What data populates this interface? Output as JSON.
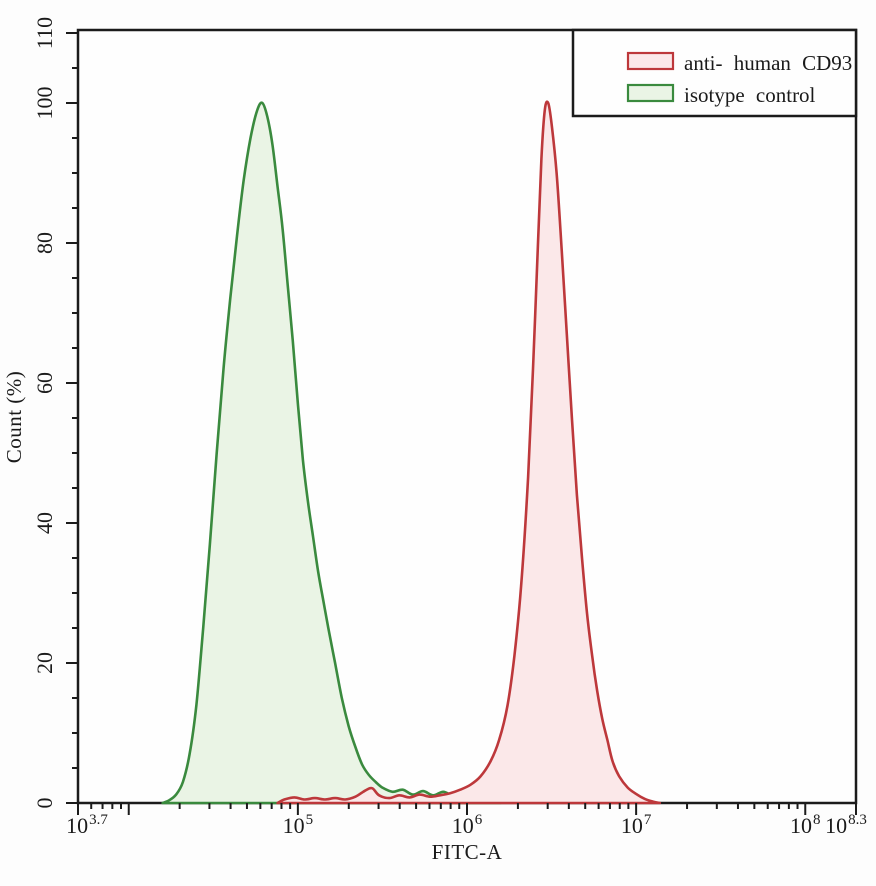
{
  "chart_data": {
    "type": "area",
    "subtype": "flow-cytometry-histogram-overlay",
    "title": "",
    "xlabel": "FITC-A",
    "ylabel": "Count (%)",
    "x_scale": "log10",
    "x_log_min": 3.7,
    "x_log_max": 8.3,
    "y_min": 0,
    "y_max": 110,
    "grid": false,
    "legend_position": "top-right",
    "x_tick_labels": [
      {
        "log": 3.7,
        "base": "10",
        "exp": "3.7"
      },
      {
        "log": 5,
        "base": "10",
        "exp": "5"
      },
      {
        "log": 6,
        "base": "10",
        "exp": "6"
      },
      {
        "log": 7,
        "base": "10",
        "exp": "7"
      },
      {
        "log": 8,
        "base": "10",
        "exp": "8"
      },
      {
        "log": 8.3,
        "base": "10",
        "exp": "8.3"
      }
    ],
    "x_major_unlabeled_logs": [
      4,
      5,
      6,
      7,
      8
    ],
    "y_major_ticks": [
      0,
      20,
      40,
      60,
      80,
      100,
      110
    ],
    "y_minor_step": 5,
    "series": [
      {
        "name": "anti- human CD93",
        "stroke": "#bd383b",
        "fill": "#fbe8e9",
        "peak_log10_x": 6.47,
        "peak_count": 100,
        "points": [
          [
            4.88,
            0
          ],
          [
            4.92,
            0.5
          ],
          [
            4.98,
            0.8
          ],
          [
            5.04,
            0.5
          ],
          [
            5.1,
            0.7
          ],
          [
            5.16,
            0.5
          ],
          [
            5.22,
            0.7
          ],
          [
            5.28,
            0.5
          ],
          [
            5.34,
            0.9
          ],
          [
            5.4,
            1.8
          ],
          [
            5.44,
            2.1
          ],
          [
            5.48,
            1.1
          ],
          [
            5.54,
            0.7
          ],
          [
            5.6,
            1.1
          ],
          [
            5.66,
            0.8
          ],
          [
            5.72,
            1.2
          ],
          [
            5.78,
            0.9
          ],
          [
            5.84,
            1.1
          ],
          [
            5.9,
            1.4
          ],
          [
            5.96,
            1.9
          ],
          [
            6.02,
            2.6
          ],
          [
            6.08,
            3.8
          ],
          [
            6.14,
            6
          ],
          [
            6.19,
            9
          ],
          [
            6.24,
            14
          ],
          [
            6.28,
            21
          ],
          [
            6.32,
            31
          ],
          [
            6.36,
            46
          ],
          [
            6.39,
            62
          ],
          [
            6.42,
            80
          ],
          [
            6.44,
            92
          ],
          [
            6.46,
            99
          ],
          [
            6.48,
            100
          ],
          [
            6.5,
            97
          ],
          [
            6.53,
            90
          ],
          [
            6.56,
            79
          ],
          [
            6.59,
            67
          ],
          [
            6.62,
            55
          ],
          [
            6.65,
            44
          ],
          [
            6.68,
            35
          ],
          [
            6.71,
            27
          ],
          [
            6.74,
            21
          ],
          [
            6.77,
            16
          ],
          [
            6.8,
            12
          ],
          [
            6.83,
            9
          ],
          [
            6.86,
            6
          ],
          [
            6.9,
            3.8
          ],
          [
            6.95,
            2.2
          ],
          [
            7.0,
            1.3
          ],
          [
            7.05,
            0.6
          ],
          [
            7.1,
            0.2
          ],
          [
            7.14,
            0
          ]
        ]
      },
      {
        "name": "isotype control",
        "stroke": "#3a8a3e",
        "fill": "#eaf4e5",
        "peak_log10_x": 4.79,
        "peak_count": 100,
        "points": [
          [
            4.2,
            0
          ],
          [
            4.24,
            0.4
          ],
          [
            4.28,
            1.2
          ],
          [
            4.32,
            3
          ],
          [
            4.36,
            7
          ],
          [
            4.4,
            14
          ],
          [
            4.44,
            25
          ],
          [
            4.48,
            37
          ],
          [
            4.52,
            50
          ],
          [
            4.56,
            62
          ],
          [
            4.6,
            72
          ],
          [
            4.64,
            81
          ],
          [
            4.68,
            89
          ],
          [
            4.72,
            95
          ],
          [
            4.76,
            99
          ],
          [
            4.79,
            100
          ],
          [
            4.82,
            98
          ],
          [
            4.85,
            94
          ],
          [
            4.88,
            88
          ],
          [
            4.91,
            82
          ],
          [
            4.94,
            74
          ],
          [
            4.97,
            66
          ],
          [
            5.0,
            57
          ],
          [
            5.03,
            49
          ],
          [
            5.06,
            43
          ],
          [
            5.09,
            38
          ],
          [
            5.12,
            33
          ],
          [
            5.15,
            29
          ],
          [
            5.18,
            25
          ],
          [
            5.22,
            20
          ],
          [
            5.26,
            15
          ],
          [
            5.3,
            11
          ],
          [
            5.34,
            8
          ],
          [
            5.38,
            5.5
          ],
          [
            5.42,
            4
          ],
          [
            5.46,
            3
          ],
          [
            5.5,
            2.2
          ],
          [
            5.56,
            1.6
          ],
          [
            5.62,
            1.9
          ],
          [
            5.68,
            1.2
          ],
          [
            5.74,
            1.7
          ],
          [
            5.8,
            1.1
          ],
          [
            5.86,
            1.6
          ],
          [
            5.92,
            1.0
          ],
          [
            5.98,
            1.3
          ],
          [
            6.04,
            0.7
          ],
          [
            6.1,
            0.4
          ],
          [
            6.16,
            0.1
          ],
          [
            6.2,
            0
          ]
        ]
      }
    ]
  },
  "legend": {
    "items": [
      {
        "label": "anti- human CD93",
        "swatch": "red"
      },
      {
        "label": "isotype control",
        "swatch": "green"
      }
    ]
  },
  "colors": {
    "axis": "#1b1b1b",
    "text": "#1a1a1a",
    "background": "#fdfdfd",
    "plot_background": "#fefefe",
    "cd93_stroke": "#bd383b",
    "cd93_fill": "#fbe8e9",
    "isotype_stroke": "#3a8a3e",
    "isotype_fill": "#eaf4e5"
  }
}
